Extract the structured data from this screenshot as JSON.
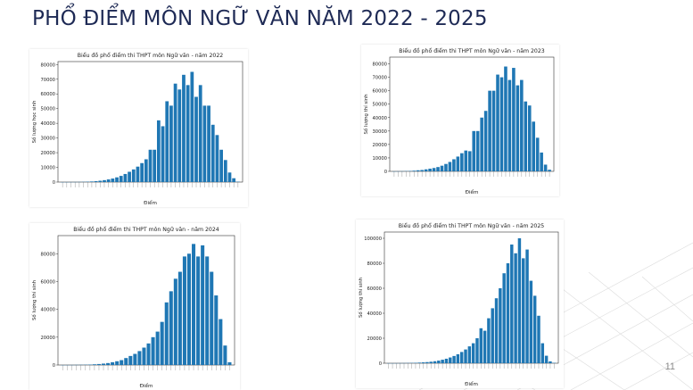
{
  "slide": {
    "title": "PHỔ ĐIỂM MÔN NGỮ VĂN NĂM 2022 - 2025",
    "page_number": "11",
    "colors": {
      "bar": "#1f77b4",
      "title": "#1e2a55"
    }
  },
  "chart_data": [
    {
      "type": "bar",
      "title": "Biểu đồ phổ điểm thi THPT môn Ngữ văn - năm 2022",
      "xlabel": "Điểm",
      "ylabel": "Số lượng học sinh",
      "ylim": [
        0,
        82000
      ],
      "yticks": [
        0,
        10000,
        20000,
        30000,
        40000,
        50000,
        60000,
        70000,
        80000
      ],
      "values": [
        10,
        20,
        40,
        60,
        100,
        150,
        250,
        400,
        600,
        900,
        1300,
        1800,
        2400,
        3200,
        4200,
        5500,
        7000,
        8600,
        10500,
        12900,
        15500,
        22000,
        22000,
        42000,
        38000,
        55000,
        52000,
        67000,
        63000,
        73000,
        66000,
        75000,
        58000,
        66000,
        52000,
        52000,
        39000,
        32000,
        22000,
        15000,
        6500,
        2600,
        240
      ]
    },
    {
      "type": "bar",
      "title": "Biểu đồ phổ điểm thi THPT môn Ngữ văn - năm 2023",
      "xlabel": "Điểm",
      "ylabel": "Số lượng thí sinh",
      "ylim": [
        0,
        85000
      ],
      "yticks": [
        0,
        10000,
        20000,
        30000,
        40000,
        50000,
        60000,
        70000,
        80000
      ],
      "values": [
        20,
        60,
        100,
        200,
        300,
        500,
        800,
        1000,
        1500,
        2000,
        2500,
        3200,
        4200,
        5500,
        7000,
        9000,
        11000,
        13500,
        15500,
        15000,
        30000,
        30000,
        40000,
        45000,
        60000,
        60000,
        72000,
        70000,
        78000,
        68000,
        77000,
        64000,
        68000,
        52000,
        49000,
        37000,
        25000,
        14000,
        5000,
        1200
      ]
    },
    {
      "type": "bar",
      "title": "Biểu đồ phổ điểm thi THPT môn Ngữ văn - năm 2024",
      "xlabel": "Điểm",
      "ylabel": "Số lượng thí sinh",
      "ylim": [
        0,
        93000
      ],
      "yticks": [
        0,
        20000,
        40000,
        60000,
        80000
      ],
      "values": [
        20,
        40,
        60,
        100,
        150,
        200,
        300,
        500,
        700,
        1000,
        1400,
        2000,
        2700,
        3500,
        5000,
        6500,
        8000,
        10000,
        12500,
        15500,
        20000,
        24000,
        31000,
        45000,
        53000,
        62000,
        67000,
        78000,
        80000,
        87000,
        78000,
        86000,
        78000,
        67000,
        50000,
        33000,
        14000,
        2000
      ]
    },
    {
      "type": "bar",
      "title": "Biểu đồ phổ điểm thi THPT môn Ngữ văn - năm 2025",
      "xlabel": "Điểm",
      "ylabel": "Số lượng thí sinh",
      "ylim": [
        0,
        105000
      ],
      "yticks": [
        0,
        20000,
        40000,
        60000,
        80000,
        100000
      ],
      "values": [
        20,
        30,
        50,
        80,
        120,
        180,
        250,
        350,
        500,
        700,
        900,
        1200,
        1600,
        2100,
        2800,
        3600,
        4600,
        5800,
        7200,
        9000,
        11000,
        13500,
        16000,
        20000,
        28000,
        26000,
        36000,
        44000,
        52000,
        60000,
        72000,
        80000,
        95000,
        88000,
        100000,
        84000,
        91000,
        66000,
        54000,
        38000,
        16000,
        6000,
        1500,
        300
      ]
    }
  ]
}
